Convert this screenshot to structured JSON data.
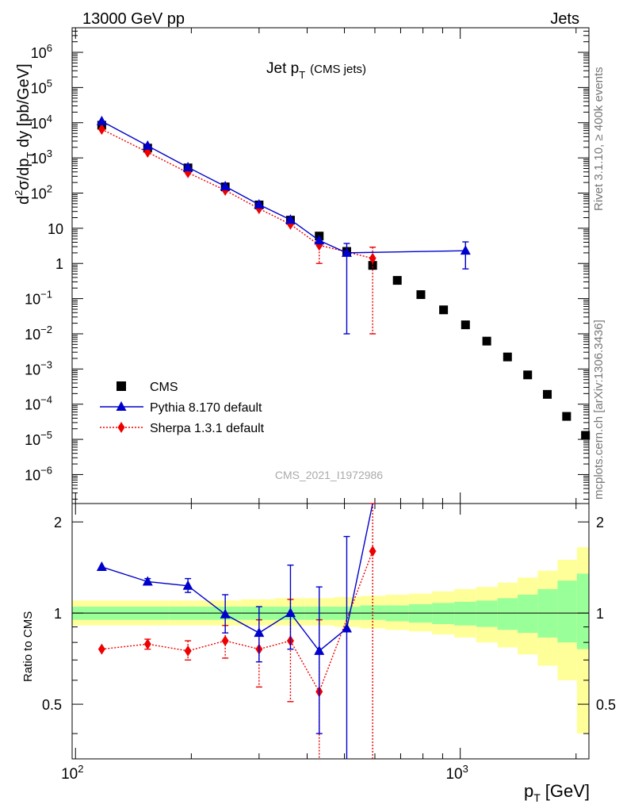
{
  "header": {
    "left": "13000 GeV pp",
    "right": "Jets"
  },
  "title": {
    "main": "Jet p",
    "sub": "T",
    "suffix": "(CMS jets)"
  },
  "side_text": {
    "top": "Rivet 3.1.10, ≥ 400k events",
    "bottom": "mcplots.cern.ch [arXiv:1306.3436]"
  },
  "watermark": "CMS_2021_I1972986",
  "axes": {
    "xlabel": "p",
    "xlabel_sub": "T",
    "xlabel_unit": "[GeV]",
    "ylabel": "d²σ/dp_T dy [pb/GeV]",
    "ratio_ylabel": "Ratio to CMS"
  },
  "legend": [
    {
      "name": "CMS",
      "color": "#000000",
      "marker": "square"
    },
    {
      "name": "Pythia 8.170 default",
      "color": "#0000cc",
      "marker": "triangle"
    },
    {
      "name": "Sherpa 1.3.1 default",
      "color": "#ee0000",
      "marker": "diamond"
    }
  ],
  "colors": {
    "data": "#000000",
    "pythia": "#0000cc",
    "sherpa": "#ee0000",
    "band_inner": "#99ff99",
    "band_outer": "#ffff99"
  },
  "chart_data": {
    "type": "scatter",
    "title": "Jet pT (CMS jets)",
    "x_scale": "log",
    "y_scale": "log",
    "xlim": [
      98,
      2160
    ],
    "ylim": [
      1.5e-07,
      5000000.0
    ],
    "ratio_ylim": [
      0.33,
      2.3
    ],
    "xticks": [
      {
        "v": 100,
        "base": "10",
        "exp": "2"
      },
      {
        "v": 1000,
        "base": "10",
        "exp": "3"
      }
    ],
    "yticks": [
      {
        "v": 1000000.0,
        "base": "10",
        "exp": "6"
      },
      {
        "v": 100000.0,
        "base": "10",
        "exp": "5"
      },
      {
        "v": 10000.0,
        "base": "10",
        "exp": "4"
      },
      {
        "v": 1000.0,
        "base": "10",
        "exp": "3"
      },
      {
        "v": 100.0,
        "base": "10",
        "exp": "2"
      },
      {
        "v": 10,
        "base": "10",
        "exp": ""
      },
      {
        "v": 1,
        "base": "1",
        "exp": ""
      },
      {
        "v": 0.1,
        "base": "10",
        "exp": "−1"
      },
      {
        "v": 0.01,
        "base": "10",
        "exp": "−2"
      },
      {
        "v": 0.001,
        "base": "10",
        "exp": "−3"
      },
      {
        "v": 0.0001,
        "base": "10",
        "exp": "−4"
      },
      {
        "v": 1e-05,
        "base": "10",
        "exp": "−5"
      },
      {
        "v": 1e-06,
        "base": "10",
        "exp": "−6"
      }
    ],
    "ratio_yticks": [
      {
        "v": 2,
        "label": "2"
      },
      {
        "v": 1,
        "label": "1"
      },
      {
        "v": 0.5,
        "label": "0.5"
      }
    ],
    "data": {
      "name": "CMS",
      "x": [
        117,
        154,
        196,
        245,
        300,
        362,
        430,
        507,
        592,
        686,
        790,
        905,
        1032,
        1172,
        1327,
        1497,
        1684,
        1890,
        2116
      ],
      "y": [
        8500,
        1900,
        520,
        150,
        46,
        17,
        6.0,
        2.2,
        0.88,
        0.33,
        0.13,
        0.048,
        0.018,
        0.0062,
        0.0022,
        0.00068,
        0.00019,
        4.5e-05,
        1.3e-05
      ]
    },
    "pythia": {
      "name": "Pythia 8.170 default",
      "x": [
        117,
        154,
        196,
        245,
        300,
        362,
        430,
        507,
        1032
      ],
      "y": [
        11000,
        2200,
        540,
        155,
        47,
        17.5,
        4.5,
        2.0,
        2.3
      ],
      "yerr_lo": [
        0,
        0,
        0,
        0,
        0,
        0,
        0,
        1.99,
        1.6
      ],
      "yerr_hi": [
        0,
        0,
        0,
        0,
        0,
        0,
        0,
        1.7,
        1.8
      ]
    },
    "sherpa": {
      "name": "Sherpa 1.3.1 default",
      "x": [
        117,
        154,
        196,
        245,
        300,
        362,
        430,
        592
      ],
      "y": [
        6500,
        1450,
        380,
        120,
        36,
        13,
        3.3,
        1.4
      ],
      "yerr_lo": [
        0,
        0,
        0,
        0,
        0,
        0,
        2.3,
        1.39
      ],
      "yerr_hi": [
        0,
        0,
        0,
        0,
        0,
        0,
        0,
        1.5
      ]
    },
    "ratio_pythia": {
      "x": [
        117,
        154,
        196,
        245,
        300,
        362,
        430,
        507,
        592
      ],
      "y": [
        1.42,
        1.27,
        1.23,
        0.99,
        0.86,
        1.0,
        0.75,
        0.89,
        2.5
      ],
      "err_lo": [
        0,
        0.03,
        0.06,
        0.13,
        0.17,
        0.24,
        0.35,
        0.89,
        0
      ],
      "err_hi": [
        0,
        0.03,
        0.07,
        0.16,
        0.19,
        0.44,
        0.47,
        0.9,
        0
      ]
    },
    "ratio_sherpa": {
      "x": [
        117,
        154,
        196,
        245,
        300,
        362,
        430,
        592
      ],
      "y": [
        0.76,
        0.79,
        0.75,
        0.81,
        0.76,
        0.81,
        0.55,
        1.6
      ],
      "err_lo": [
        0,
        0.03,
        0.05,
        0.1,
        0.19,
        0.3,
        0.45,
        1.5
      ],
      "err_hi": [
        0,
        0.03,
        0.06,
        0.1,
        0.19,
        0.3,
        0.4,
        1.0
      ]
    },
    "uncertainty_band": {
      "edges": [
        98,
        135,
        175,
        220,
        270,
        330,
        395,
        470,
        550,
        640,
        735,
        845,
        965,
        1100,
        1250,
        1410,
        1590,
        1790,
        2010,
        2160
      ],
      "inner_lo": [
        0.95,
        0.95,
        0.95,
        0.95,
        0.95,
        0.95,
        0.95,
        0.95,
        0.95,
        0.94,
        0.93,
        0.92,
        0.91,
        0.9,
        0.88,
        0.86,
        0.83,
        0.8,
        0.76
      ],
      "inner_hi": [
        1.05,
        1.05,
        1.05,
        1.05,
        1.05,
        1.05,
        1.05,
        1.05,
        1.06,
        1.06,
        1.07,
        1.08,
        1.09,
        1.1,
        1.12,
        1.15,
        1.2,
        1.28,
        1.35
      ],
      "outer_lo": [
        0.91,
        0.91,
        0.91,
        0.91,
        0.91,
        0.91,
        0.91,
        0.9,
        0.89,
        0.88,
        0.87,
        0.85,
        0.83,
        0.8,
        0.77,
        0.73,
        0.67,
        0.6,
        0.4
      ],
      "outer_hi": [
        1.1,
        1.1,
        1.1,
        1.1,
        1.11,
        1.12,
        1.12,
        1.13,
        1.14,
        1.15,
        1.16,
        1.18,
        1.2,
        1.22,
        1.26,
        1.31,
        1.38,
        1.5,
        1.65
      ]
    }
  }
}
